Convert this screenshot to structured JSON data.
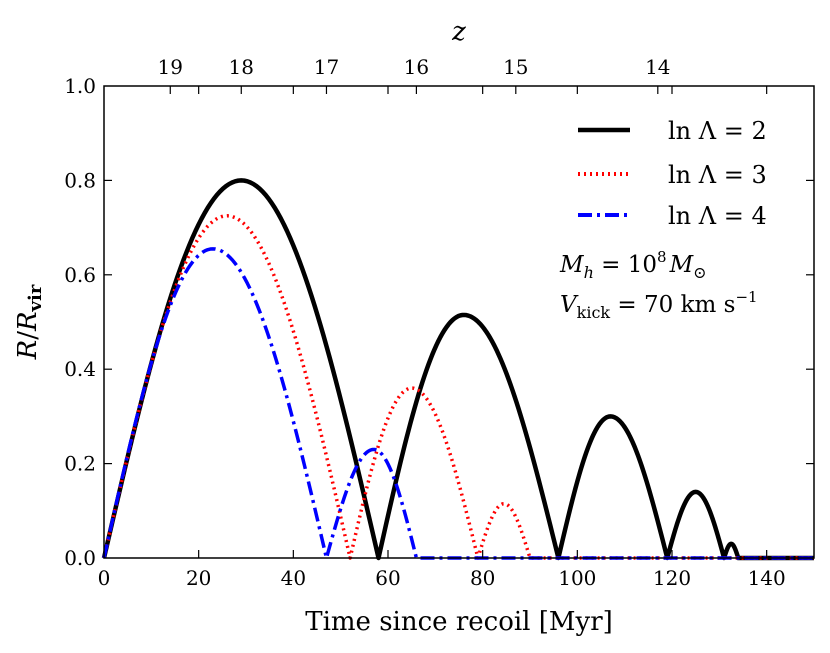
{
  "chart_data": {
    "type": "line",
    "xlabel": "Time since recoil [Myr]",
    "ylabel": "R/R_vir",
    "top_axis_label": "z",
    "xlim": [
      0,
      150
    ],
    "ylim": [
      0,
      1.0
    ],
    "x_ticks": [
      0,
      20,
      40,
      60,
      80,
      100,
      120,
      140
    ],
    "x_tick_labels": [
      "0",
      "20",
      "40",
      "60",
      "80",
      "100",
      "120",
      "140"
    ],
    "y_ticks": [
      0,
      0.2,
      0.4,
      0.6,
      0.8,
      1.0
    ],
    "y_tick_labels": [
      "0.0",
      "0.2",
      "0.4",
      "0.6",
      "0.8",
      "1.0"
    ],
    "top_ticks": [
      {
        "z": "19",
        "time": 14
      },
      {
        "z": "18",
        "time": 29
      },
      {
        "z": "17",
        "time": 47
      },
      {
        "z": "16",
        "time": 66
      },
      {
        "z": "15",
        "time": 87
      },
      {
        "z": "14",
        "time": 117
      }
    ],
    "legend_position": "top-right",
    "annotations": [
      "M_h = 10^8 M_⊙",
      "V_kick = 70 km s^-1"
    ],
    "series": [
      {
        "name": "ln Λ = 2",
        "style": "solid",
        "color": "#000000",
        "arches": [
          {
            "start": 0,
            "end": 58,
            "peak_t": 29,
            "peak": 0.8
          },
          {
            "start": 58,
            "end": 96,
            "peak_t": 76,
            "peak": 0.515
          },
          {
            "start": 96,
            "end": 119,
            "peak_t": 107,
            "peak": 0.3
          },
          {
            "start": 119,
            "end": 131,
            "peak_t": 125,
            "peak": 0.14
          },
          {
            "start": 131,
            "end": 134,
            "peak_t": 132.5,
            "peak": 0.03
          }
        ]
      },
      {
        "name": "ln Λ = 3",
        "style": "dotted",
        "color": "#ff0000",
        "arches": [
          {
            "start": 0,
            "end": 52,
            "peak_t": 26,
            "peak": 0.725
          },
          {
            "start": 52,
            "end": 79,
            "peak_t": 65,
            "peak": 0.36
          },
          {
            "start": 79,
            "end": 90,
            "peak_t": 84.5,
            "peak": 0.115
          }
        ]
      },
      {
        "name": "ln Λ = 4",
        "style": "dashdot",
        "color": "#0000ff",
        "arches": [
          {
            "start": 0,
            "end": 47,
            "peak_t": 23,
            "peak": 0.655
          },
          {
            "start": 47,
            "end": 66,
            "peak_t": 57,
            "peak": 0.23
          }
        ]
      }
    ]
  },
  "legend": {
    "items": [
      "ln Λ = 2",
      "ln Λ = 3",
      "ln Λ = 4"
    ]
  },
  "annotation": {
    "mass_prefix": "M",
    "mass_sub": "h",
    "mass_mid": " = 10",
    "mass_sup": "8",
    "mass_tail": "M",
    "mass_tail_sub": "⊙",
    "kick_prefix": "V",
    "kick_sub": "kick",
    "kick_mid": " = 70 km s",
    "kick_sup": "−1"
  },
  "labels": {
    "ylabel_R": "R",
    "ylabel_slash": "/",
    "ylabel_Rv": "R",
    "ylabel_sub": "vir",
    "top_z": "z",
    "xlabel": "Time since recoil [Myr]"
  },
  "colors": {
    "solid": "#000000",
    "dotted": "#ff0000",
    "dashdot": "#0000ff"
  }
}
